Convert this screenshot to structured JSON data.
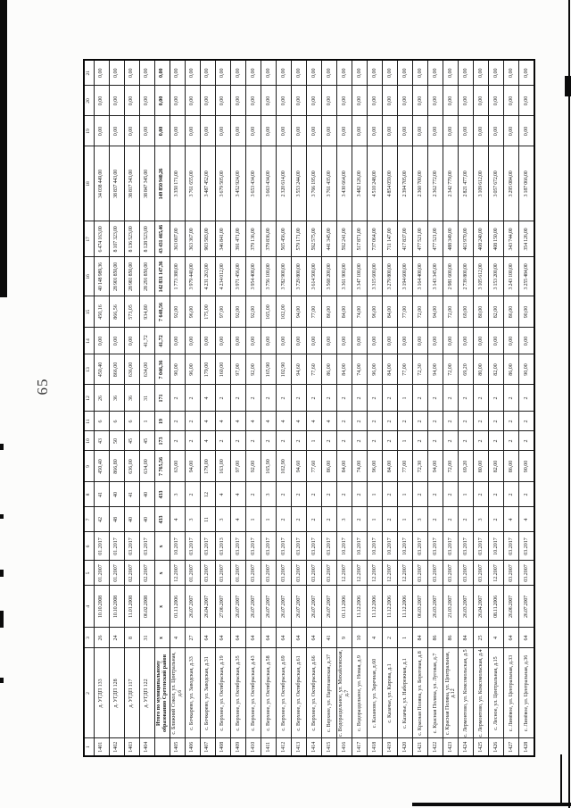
{
  "page": {
    "number": "65"
  },
  "table": {
    "column_headers": [
      "1",
      "2",
      "3",
      "4",
      "5",
      "6",
      "7",
      "8",
      "9",
      "10",
      "11",
      "12",
      "13",
      "14",
      "15",
      "16",
      "17",
      "18",
      "19",
      "20",
      "21"
    ],
    "total_row_index": 4,
    "rows": [
      [
        "1401",
        "д. УГДП 133",
        "26",
        "10.10.2008",
        "01.2007",
        "01.2017",
        "42",
        "41",
        "450,40",
        "43",
        "6",
        "26",
        "450,40",
        "0,00",
        "450,16",
        "40 148 989,36",
        "6 474 163,00",
        "34 038 449,00",
        "0,00",
        "0,00",
        "0,00"
      ],
      [
        "1402",
        "д. УГДП 128",
        "24",
        "10.10.2008",
        "01.2007",
        "01.2017",
        "48",
        "40",
        "866,80",
        "50",
        "6",
        "36",
        "866,00",
        "0,00",
        "866,56",
        "28 901 850,00",
        "8 107 323,00",
        "38 837 443,00",
        "0,00",
        "0,00",
        "0,00"
      ],
      [
        "1403",
        "д. УГДП 117",
        "8",
        "11.01.2008",
        "02.2007",
        "03.2017",
        "40",
        "41",
        "636,00",
        "45",
        "6",
        "36",
        "636,00",
        "0,00",
        "573,05",
        "28 981 850,00",
        "8 136 523,00",
        "38 817 343,00",
        "0,00",
        "0,00",
        "0,00"
      ],
      [
        "1404",
        "д. УГДП 122",
        "31",
        "06.02.2008",
        "02.2007",
        "03.2017",
        "40",
        "40",
        "634,00",
        "45",
        "1",
        "31",
        "634,00",
        "41,72",
        "934,80",
        "28 291 850,00",
        "8 128 523,00",
        "38 847 345,00",
        "0,00",
        "0,00",
        "0,00"
      ],
      [
        "",
        "Итого по муниципальному образованию Сретенский район",
        "х",
        "х",
        "х",
        "х",
        "433",
        "433",
        "7 765,56",
        "173",
        "19",
        "171",
        "7 046,36",
        "41,72",
        "7 648,56",
        "142 831 147,36",
        "43 431 465,46",
        "149 850 940,26",
        "0,00",
        "0,00",
        "0,00"
      ],
      [
        "1405",
        "с. Ближний Сокол, ул. Центральная, д.6",
        "4",
        "01.11.2006",
        "12.2007",
        "10.2017",
        "4",
        "3",
        "63,00",
        "2",
        "2",
        "2",
        "90,00",
        "0,00",
        "92,00",
        "1 773 380,00",
        "363 007,00",
        "3 350 171,00",
        "0,00",
        "0,00",
        "0,00"
      ],
      [
        "1406",
        "с. Бочкарево, ул. Заводская, д.33",
        "27",
        "26.07.2007",
        "01.2007",
        "03.2017",
        "3",
        "2",
        "94,00",
        "2",
        "2",
        "2",
        "96,00",
        "0,00",
        "96,00",
        "3 979 440,00",
        "363 367,00",
        "3 761 655,00",
        "0,00",
        "0,00",
        "0,00"
      ],
      [
        "1407",
        "с. Бочкарево, ул. Заводская, д.31",
        "64",
        "26.04.2007",
        "03.2007",
        "03.2017",
        "11",
        "12",
        "179,00",
        "4",
        "4",
        "4",
        "179,00",
        "0,00",
        "175,00",
        "4 231 263,00",
        "903 583,00",
        "3 487 452,00",
        "0,00",
        "0,00",
        "0,00"
      ],
      [
        "1408",
        "с. Верхнее, ул. Октябрьская, д.19",
        "64",
        "27.06.2007",
        "03.2007",
        "03.2013",
        "3",
        "4",
        "163,00",
        "2",
        "4",
        "2",
        "160,00",
        "0,00",
        "97,00",
        "4 234 012,00",
        "346 841,00",
        "3 679 505,00",
        "0,00",
        "0,00",
        "0,00"
      ],
      [
        "1409",
        "с. Верхнее, ул. Октябрьская, д.35",
        "64",
        "26.07.2007",
        "01.2007",
        "03.2017",
        "4",
        "4",
        "97,00",
        "2",
        "4",
        "2",
        "97,00",
        "0,00",
        "92,00",
        "3 971 456,00",
        "391 471,00",
        "3 452 924,00",
        "0,00",
        "0,00",
        "0,00"
      ],
      [
        "1410",
        "с. Верхнее, ул. Октябрьская, д.43",
        "64",
        "26.07.2007",
        "03.2007",
        "03.2017",
        "1",
        "2",
        "92,00",
        "2",
        "4",
        "2",
        "92,00",
        "0,00",
        "92,00",
        "3 954 408,00",
        "379 136,00",
        "3 653 434,00",
        "0,00",
        "0,00",
        "0,00"
      ],
      [
        "1411",
        "с. Верхнее, ул. Октябрьская, д.58",
        "64",
        "26.07.2007",
        "03.2007",
        "03.2017",
        "1",
        "3",
        "165,90",
        "2",
        "4",
        "2",
        "165,90",
        "0,00",
        "165,00",
        "3 756 100,00",
        "379 836,00",
        "3 663 434,00",
        "0,00",
        "0,00",
        "0,00"
      ],
      [
        "1412",
        "с. Верхнее, ул. Октябрьская, д.69",
        "64",
        "26.07.2007",
        "03.2007",
        "03.2017",
        "2",
        "2",
        "102,90",
        "2",
        "4",
        "2",
        "102,90",
        "0,00",
        "102,00",
        "3 782 900,00",
        "565 456,00",
        "2 320 614,00",
        "0,00",
        "0,00",
        "0,00"
      ],
      [
        "1413",
        "с. Верхнее, ул. Октябрьская, д.61",
        "64",
        "26.07.2007",
        "03.2007",
        "03.2017",
        "2",
        "2",
        "94,60",
        "2",
        "4",
        "2",
        "94,60",
        "0,00",
        "94,00",
        "3 729 800,00",
        "579 171,00",
        "3 553 244,00",
        "0,00",
        "0,00",
        "0,00"
      ],
      [
        "1414",
        "с. Верхнее, ул. Октябрьская, д.66",
        "64",
        "26.07.2007",
        "03.2007",
        "03.2017",
        "2",
        "2",
        "77,60",
        "1",
        "4",
        "2",
        "77,60",
        "0,00",
        "77,00",
        "3 614 500,00",
        "592 575,00",
        "3 766 195,00",
        "0,00",
        "0,00",
        "0,00"
      ],
      [
        "1415",
        "с. Верхнее, ул. Партизанская, д.37",
        "41",
        "26.07.2007",
        "03.2007",
        "03.2017",
        "2",
        "2",
        "86,00",
        "2",
        "4",
        "2",
        "86,00",
        "0,00",
        "86,00",
        "3 568 200,00",
        "441 345,00",
        "3 761 435,00",
        "0,00",
        "0,00",
        "0,00"
      ],
      [
        "1416",
        "с. Водораздельное, ул. Михайловская, д.7",
        "9",
        "01.11.2006",
        "12.2007",
        "10.2017",
        "3",
        "2",
        "84,00",
        "2",
        "2",
        "2",
        "84,00",
        "0,00",
        "84,00",
        "3 361 900,00",
        "592 241,00",
        "3 430 664,00",
        "0,00",
        "0,00",
        "0,00"
      ],
      [
        "1417",
        "с. Водораздельное, ул. Новая, д.9",
        "10",
        "11.12.2006",
        "12.2007",
        "10.2017",
        "2",
        "2",
        "74,00",
        "2",
        "2",
        "2",
        "74,00",
        "0,00",
        "74,00",
        "3 347 100,00",
        "517 871,00",
        "3 482 126,00",
        "0,00",
        "0,00",
        "0,00"
      ],
      [
        "1418",
        "с. Казаново, ул. Заречная, д.60",
        "4",
        "11.12.2006",
        "12.2007",
        "10.2017",
        "1",
        "1",
        "96,00",
        "2",
        "2",
        "2",
        "96,00",
        "0,00",
        "96,00",
        "3 315 600,00",
        "737 064,00",
        "4 510 248,00",
        "0,00",
        "0,00",
        "0,00"
      ],
      [
        "1419",
        "с. Казачье, ул. Кирова, д.1",
        "2",
        "11.12.2006",
        "12.2007",
        "10.2017",
        "2",
        "2",
        "84,00",
        "2",
        "2",
        "2",
        "84,00",
        "0,00",
        "84,00",
        "3 279 800,00",
        "711 147,00",
        "4 854 059,00",
        "0,00",
        "0,00",
        "0,00"
      ],
      [
        "1420",
        "с. Казачье, ул. Набережная, д.1",
        "1",
        "11.12.2006",
        "12.2007",
        "10.2017",
        "1",
        "1",
        "77,00",
        "1",
        "2",
        "1",
        "77,00",
        "0,00",
        "77,00",
        "3 194 600,00",
        "417 837,00",
        "2 394 705,00",
        "0,00",
        "0,00",
        "0,00"
      ],
      [
        "1421",
        "с. Красная Поляна, ул. Береговая, д.8",
        "84",
        "06.03.2007",
        "03.2007",
        "03.2017",
        "3",
        "2",
        "72,30",
        "2",
        "2",
        "2",
        "72,30",
        "0,00",
        "72,00",
        "3 164 400,00",
        "477 521,00",
        "2 360 700,00",
        "0,00",
        "0,00",
        "0,00"
      ],
      [
        "1422",
        "с. Красная Поляна, ул. Луговая, д.7",
        "86",
        "26.03.2007",
        "03.2007",
        "03.2017",
        "2",
        "2",
        "94,00",
        "2",
        "2",
        "2",
        "94,00",
        "0,00",
        "94,00",
        "3 143 345,00",
        "477 521,00",
        "2 362 772,00",
        "0,00",
        "0,00",
        "0,00"
      ],
      [
        "1423",
        "с. Красная Поляна, ул. Центральная, д.12",
        "86",
        "21.03.2007",
        "03.2007",
        "03.2017",
        "2",
        "2",
        "72,00",
        "2",
        "2",
        "2",
        "72,00",
        "0,00",
        "72,00",
        "2 981 600,00",
        "488 349,00",
        "2 342 779,00",
        "0,00",
        "0,00",
        "0,00"
      ],
      [
        "1424",
        "с. Лермонтово, ул. Комсомольская, д.5",
        "84",
        "26.03.2007",
        "03.2007",
        "03.2017",
        "2",
        "1",
        "69,20",
        "2",
        "2",
        "2",
        "69,20",
        "0,00",
        "69,00",
        "2 739 800,00",
        "463 970,00",
        "2 821 477,00",
        "0,00",
        "0,00",
        "0,00"
      ],
      [
        "1425",
        "с. Лермонтово, ул. Комсомольская, д.4",
        "25",
        "26.04.2007",
        "03.2007",
        "03.2017",
        "3",
        "2",
        "80,00",
        "2",
        "2",
        "2",
        "80,00",
        "0,00",
        "80,00",
        "3 105 612,00",
        "408 240,00",
        "3 109 612,00",
        "0,00",
        "0,00",
        "0,00"
      ],
      [
        "1426",
        "с. Лесное, ул. Центральная, д.15",
        "4",
        "08.11.2006",
        "12.2007",
        "10.2017",
        "2",
        "2",
        "82,00",
        "2",
        "2",
        "2",
        "82,00",
        "0,00",
        "82,00",
        "3 153 200,00",
        "408 150,00",
        "3 057 672,00",
        "0,00",
        "0,00",
        "0,00"
      ],
      [
        "1427",
        "с. Линёвое, ул. Центральная, д.33",
        "64",
        "26.06.2007",
        "03.2007",
        "03.2017",
        "4",
        "2",
        "86,00",
        "2",
        "2",
        "2",
        "86,00",
        "0,00",
        "86,00",
        "3 243 100,00",
        "343 744,00",
        "3 295 084,00",
        "0,00",
        "0,00",
        "0,00"
      ],
      [
        "1428",
        "с. Линёвое, ул. Центральная, д.36",
        "64",
        "26.07.2007",
        "03.2007",
        "03.2017",
        "4",
        "2",
        "90,00",
        "2",
        "2",
        "2",
        "90,00",
        "0,00",
        "90,00",
        "3 255 484,00",
        "354 126,00",
        "3 187 066,00",
        "0,00",
        "0,00",
        "0,00"
      ]
    ]
  }
}
